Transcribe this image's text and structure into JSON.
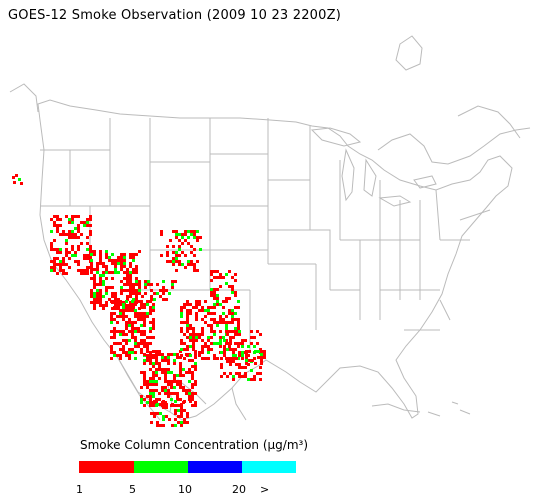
{
  "title": "GOES-12 Smoke Observation (2009 10 23  2200Z)",
  "legend": {
    "title": "Smoke Column Concentration (μg/m³)",
    "colors": [
      "#ff0000",
      "#00ff00",
      "#0000ff",
      "#00ffff"
    ],
    "ticks": [
      "1",
      "5",
      "10",
      "20",
      ">"
    ]
  },
  "colors": {
    "land_lines": "#bbbbbb",
    "background": "#ffffff"
  }
}
